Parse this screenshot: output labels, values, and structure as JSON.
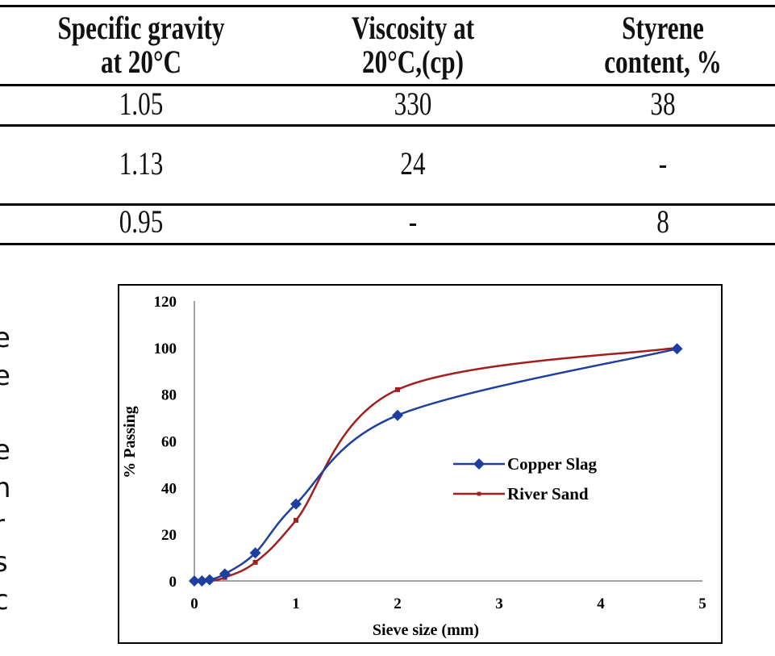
{
  "table": {
    "headers": [
      [
        "Specific gravity",
        "at 20°C"
      ],
      [
        "Viscosity at",
        "20°C,(cp)"
      ],
      [
        "Styrene",
        "content, %"
      ]
    ],
    "rows": [
      [
        "1.05",
        "330",
        "38"
      ],
      [
        "1.13",
        "24",
        "-"
      ],
      [
        "0.95",
        "-",
        "8"
      ]
    ]
  },
  "left_margin_fragments": [
    "e",
    "e",
    "J",
    "e",
    "n",
    "r",
    "s",
    "c"
  ],
  "chart_data": {
    "type": "line",
    "xlabel": "Sieve size (mm)",
    "ylabel": "% Passing",
    "xlim": [
      0,
      5
    ],
    "ylim": [
      0,
      120
    ],
    "xticks": [
      "0",
      "1",
      "2",
      "3",
      "4",
      "5"
    ],
    "yticks": [
      "0",
      "20",
      "40",
      "60",
      "80",
      "100",
      "120"
    ],
    "grid": false,
    "legend_position": "right-middle",
    "x": [
      0,
      0.075,
      0.15,
      0.3,
      0.6,
      1.0,
      2.0,
      4.75
    ],
    "series": [
      {
        "name": "Copper Slag",
        "color": "#1f3fa0",
        "marker": "diamond",
        "values": [
          0,
          0,
          0.5,
          3,
          12,
          33,
          71,
          99.5
        ]
      },
      {
        "name": "River Sand",
        "color": "#a31f1f",
        "marker": "square",
        "values": [
          0,
          0,
          0,
          1.5,
          8,
          26,
          82,
          100
        ]
      }
    ]
  }
}
